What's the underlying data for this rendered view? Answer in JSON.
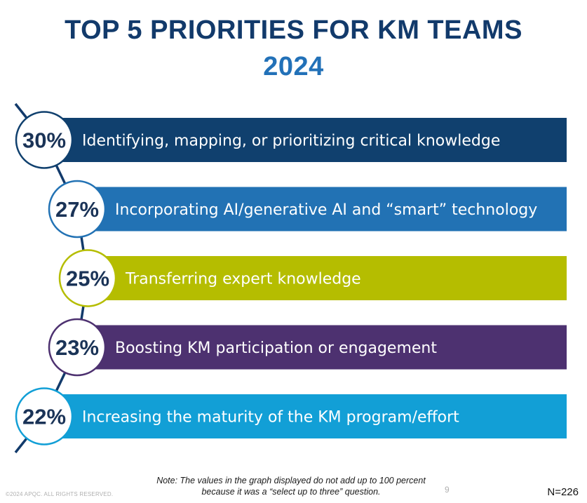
{
  "header": {
    "title_line1": "TOP 5 PRIORITIES FOR KM TEAMS",
    "title_line2": "2024"
  },
  "chart_data": {
    "type": "bar",
    "title": "TOP 5 PRIORITIES FOR KM TEAMS 2024",
    "unit": "%",
    "xlim": [
      0,
      100
    ],
    "items": [
      {
        "label": "30%",
        "value": 30,
        "category": "Identifying, mapping, or prioritizing critical knowledge",
        "color": "#10406e"
      },
      {
        "label": "27%",
        "value": 27,
        "category": "Incorporating AI/generative AI and “smart” technology",
        "color": "#2272b4"
      },
      {
        "label": "25%",
        "value": 25,
        "category": "Transferring expert knowledge",
        "color": "#b5bd00"
      },
      {
        "label": "23%",
        "value": 23,
        "category": "Boosting KM participation or engagement",
        "color": "#4d3170"
      },
      {
        "label": "22%",
        "value": 22,
        "category": "Increasing the maturity of the KM program/effort",
        "color": "#129fd6"
      }
    ]
  },
  "colors": {
    "navy": "#123a6b",
    "blue": "#2271b8",
    "circle_text": "#1a3357"
  },
  "footer": {
    "copyright": "©2024 APQC. ALL RIGHTS RESERVED.",
    "note": "Note: The values in the graph displayed do not add up to 100 percent because it was a “select up to three” question.",
    "page": "9",
    "n": "N=226"
  }
}
